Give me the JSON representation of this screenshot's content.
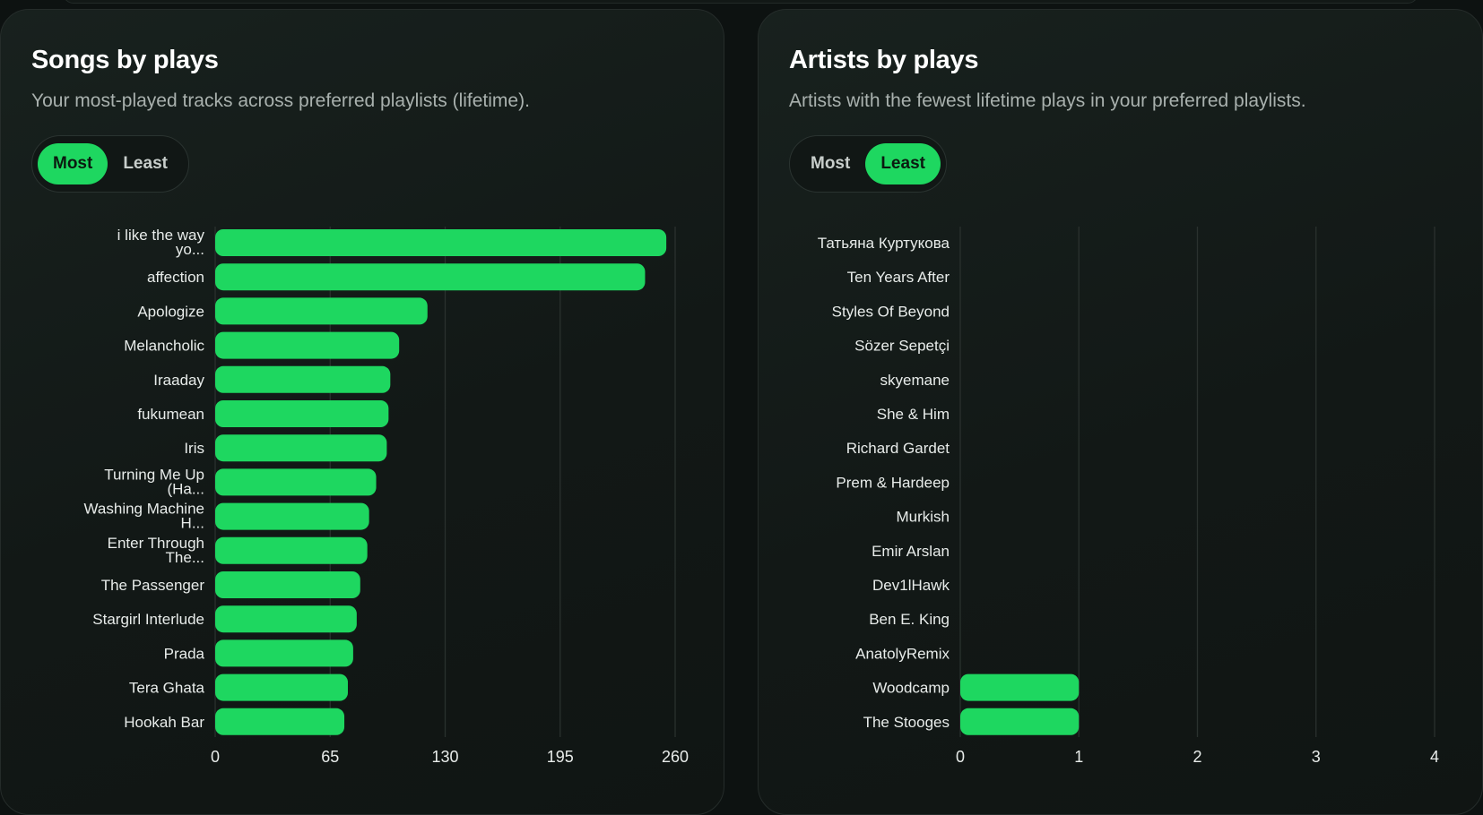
{
  "panels": [
    {
      "title": "Songs by plays",
      "subtitle": "Your most-played tracks across preferred playlists (lifetime).",
      "toggle": {
        "options": [
          "Most",
          "Least"
        ],
        "selected": "Most"
      }
    },
    {
      "title": "Artists by plays",
      "subtitle": "Artists with the fewest lifetime plays in your preferred playlists.",
      "toggle": {
        "options": [
          "Most",
          "Least"
        ],
        "selected": "Least"
      }
    }
  ],
  "colors": {
    "bar": "#1ed760",
    "grid": "#2a312e",
    "label": "#e8ecea",
    "tick": "#e8ecea"
  },
  "chart_data": [
    {
      "type": "bar",
      "orientation": "horizontal",
      "title": "Songs by plays",
      "categories": [
        "i like the way yo...",
        "affection",
        "Apologize",
        "Melancholic",
        "Iraaday",
        "fukumean",
        "Iris",
        "Turning Me Up (Ha...",
        "Washing Machine H...",
        "Enter Through The...",
        "The Passenger",
        "Stargirl Interlude",
        "Prada",
        "Tera Ghata",
        "Hookah Bar"
      ],
      "values": [
        255,
        243,
        120,
        104,
        99,
        98,
        97,
        91,
        87,
        86,
        82,
        80,
        78,
        75,
        73
      ],
      "xlim": [
        0,
        260
      ],
      "xticks": [
        0,
        65,
        130,
        195,
        260
      ],
      "grid": true,
      "bar_color": "#1ed760"
    },
    {
      "type": "bar",
      "orientation": "horizontal",
      "title": "Artists by plays",
      "categories": [
        "Татьяна Куртукова",
        "Ten Years After",
        "Styles Of Beyond",
        "Sözer Sepetçi",
        "skyemane",
        "She & Him",
        "Richard Gardet",
        "Prem & Hardeep",
        "Murkish",
        "Emir Arslan",
        "Dev1lHawk",
        "Ben E. King",
        "AnatolyRemix",
        "Woodcamp",
        "The Stooges"
      ],
      "values": [
        0,
        0,
        0,
        0,
        0,
        0,
        0,
        0,
        0,
        0,
        0,
        0,
        0,
        1,
        1
      ],
      "xlim": [
        0,
        4
      ],
      "xticks": [
        0,
        1,
        2,
        3,
        4
      ],
      "grid": true,
      "bar_color": "#1ed760"
    }
  ]
}
